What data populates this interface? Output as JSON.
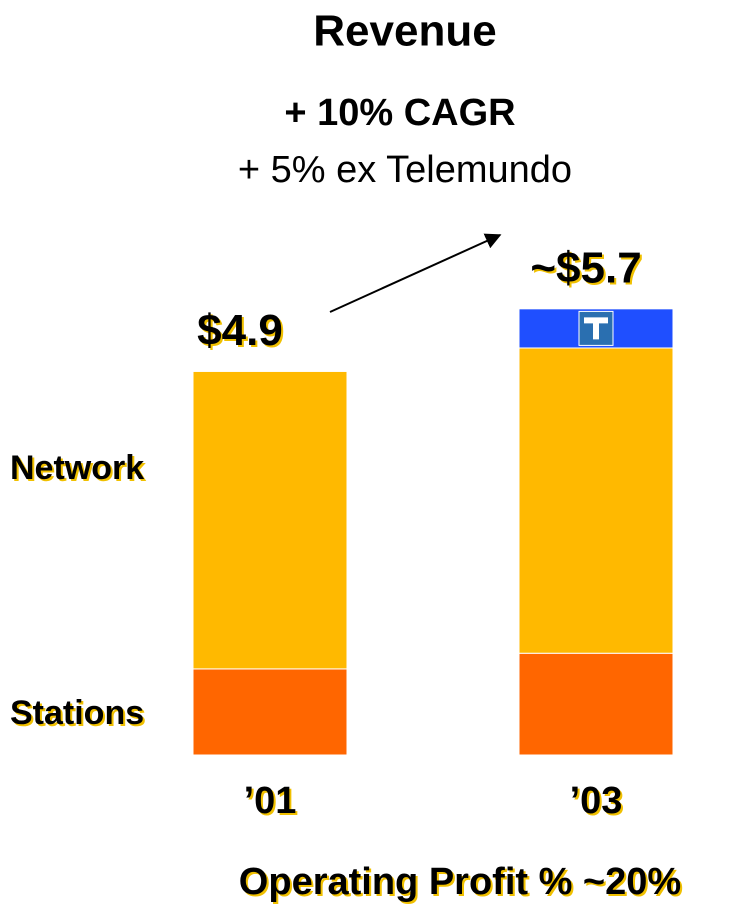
{
  "chart_data": {
    "type": "stacked_bar",
    "title": "Revenue",
    "subtitle": "+ 10% CAGR",
    "annotation": "+ 5% ex Telemundo",
    "footer": "Operating Profit % ~20%",
    "categories": [
      "’01",
      "’03"
    ],
    "series": [
      {
        "name": "Stations",
        "color": "#ff6600",
        "values": [
          1.1,
          1.3
        ]
      },
      {
        "name": "Network",
        "color": "#ffb900",
        "values": [
          3.8,
          3.9
        ]
      },
      {
        "color": "#1f4fff",
        "values": [
          null,
          0.5
        ]
      }
    ],
    "totals": {
      "values": [
        4.9,
        5.7
      ],
      "value_labels": [
        "$4.9",
        "~$5.7"
      ]
    },
    "ylim": [
      0,
      5.8
    ]
  }
}
